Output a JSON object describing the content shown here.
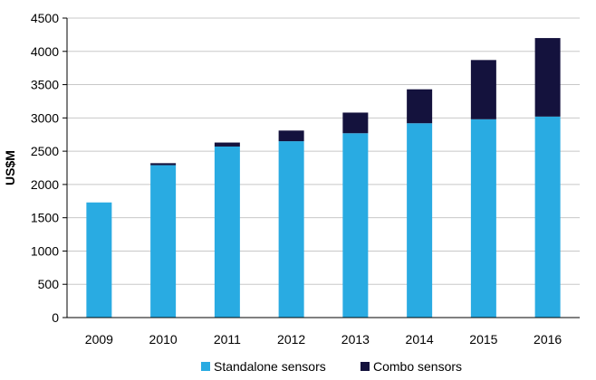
{
  "chart_data": {
    "type": "bar",
    "stacked": true,
    "categories": [
      "2009",
      "2010",
      "2011",
      "2012",
      "2013",
      "2014",
      "2015",
      "2016"
    ],
    "series": [
      {
        "name": "Standalone sensors",
        "color": "#29abe2",
        "values": [
          1730,
          2290,
          2570,
          2650,
          2770,
          2920,
          2980,
          3020
        ]
      },
      {
        "name": "Combo sensors",
        "color": "#14123d",
        "values": [
          0,
          30,
          60,
          160,
          310,
          510,
          890,
          1180
        ]
      }
    ],
    "ylabel": "US$M",
    "ylim": [
      0,
      4500
    ],
    "yticks": [
      0,
      500,
      1000,
      1500,
      2000,
      2500,
      3000,
      3500,
      4000,
      4500
    ],
    "grid": true,
    "gridColor": "#c8c8c8",
    "legend": "bottom"
  }
}
